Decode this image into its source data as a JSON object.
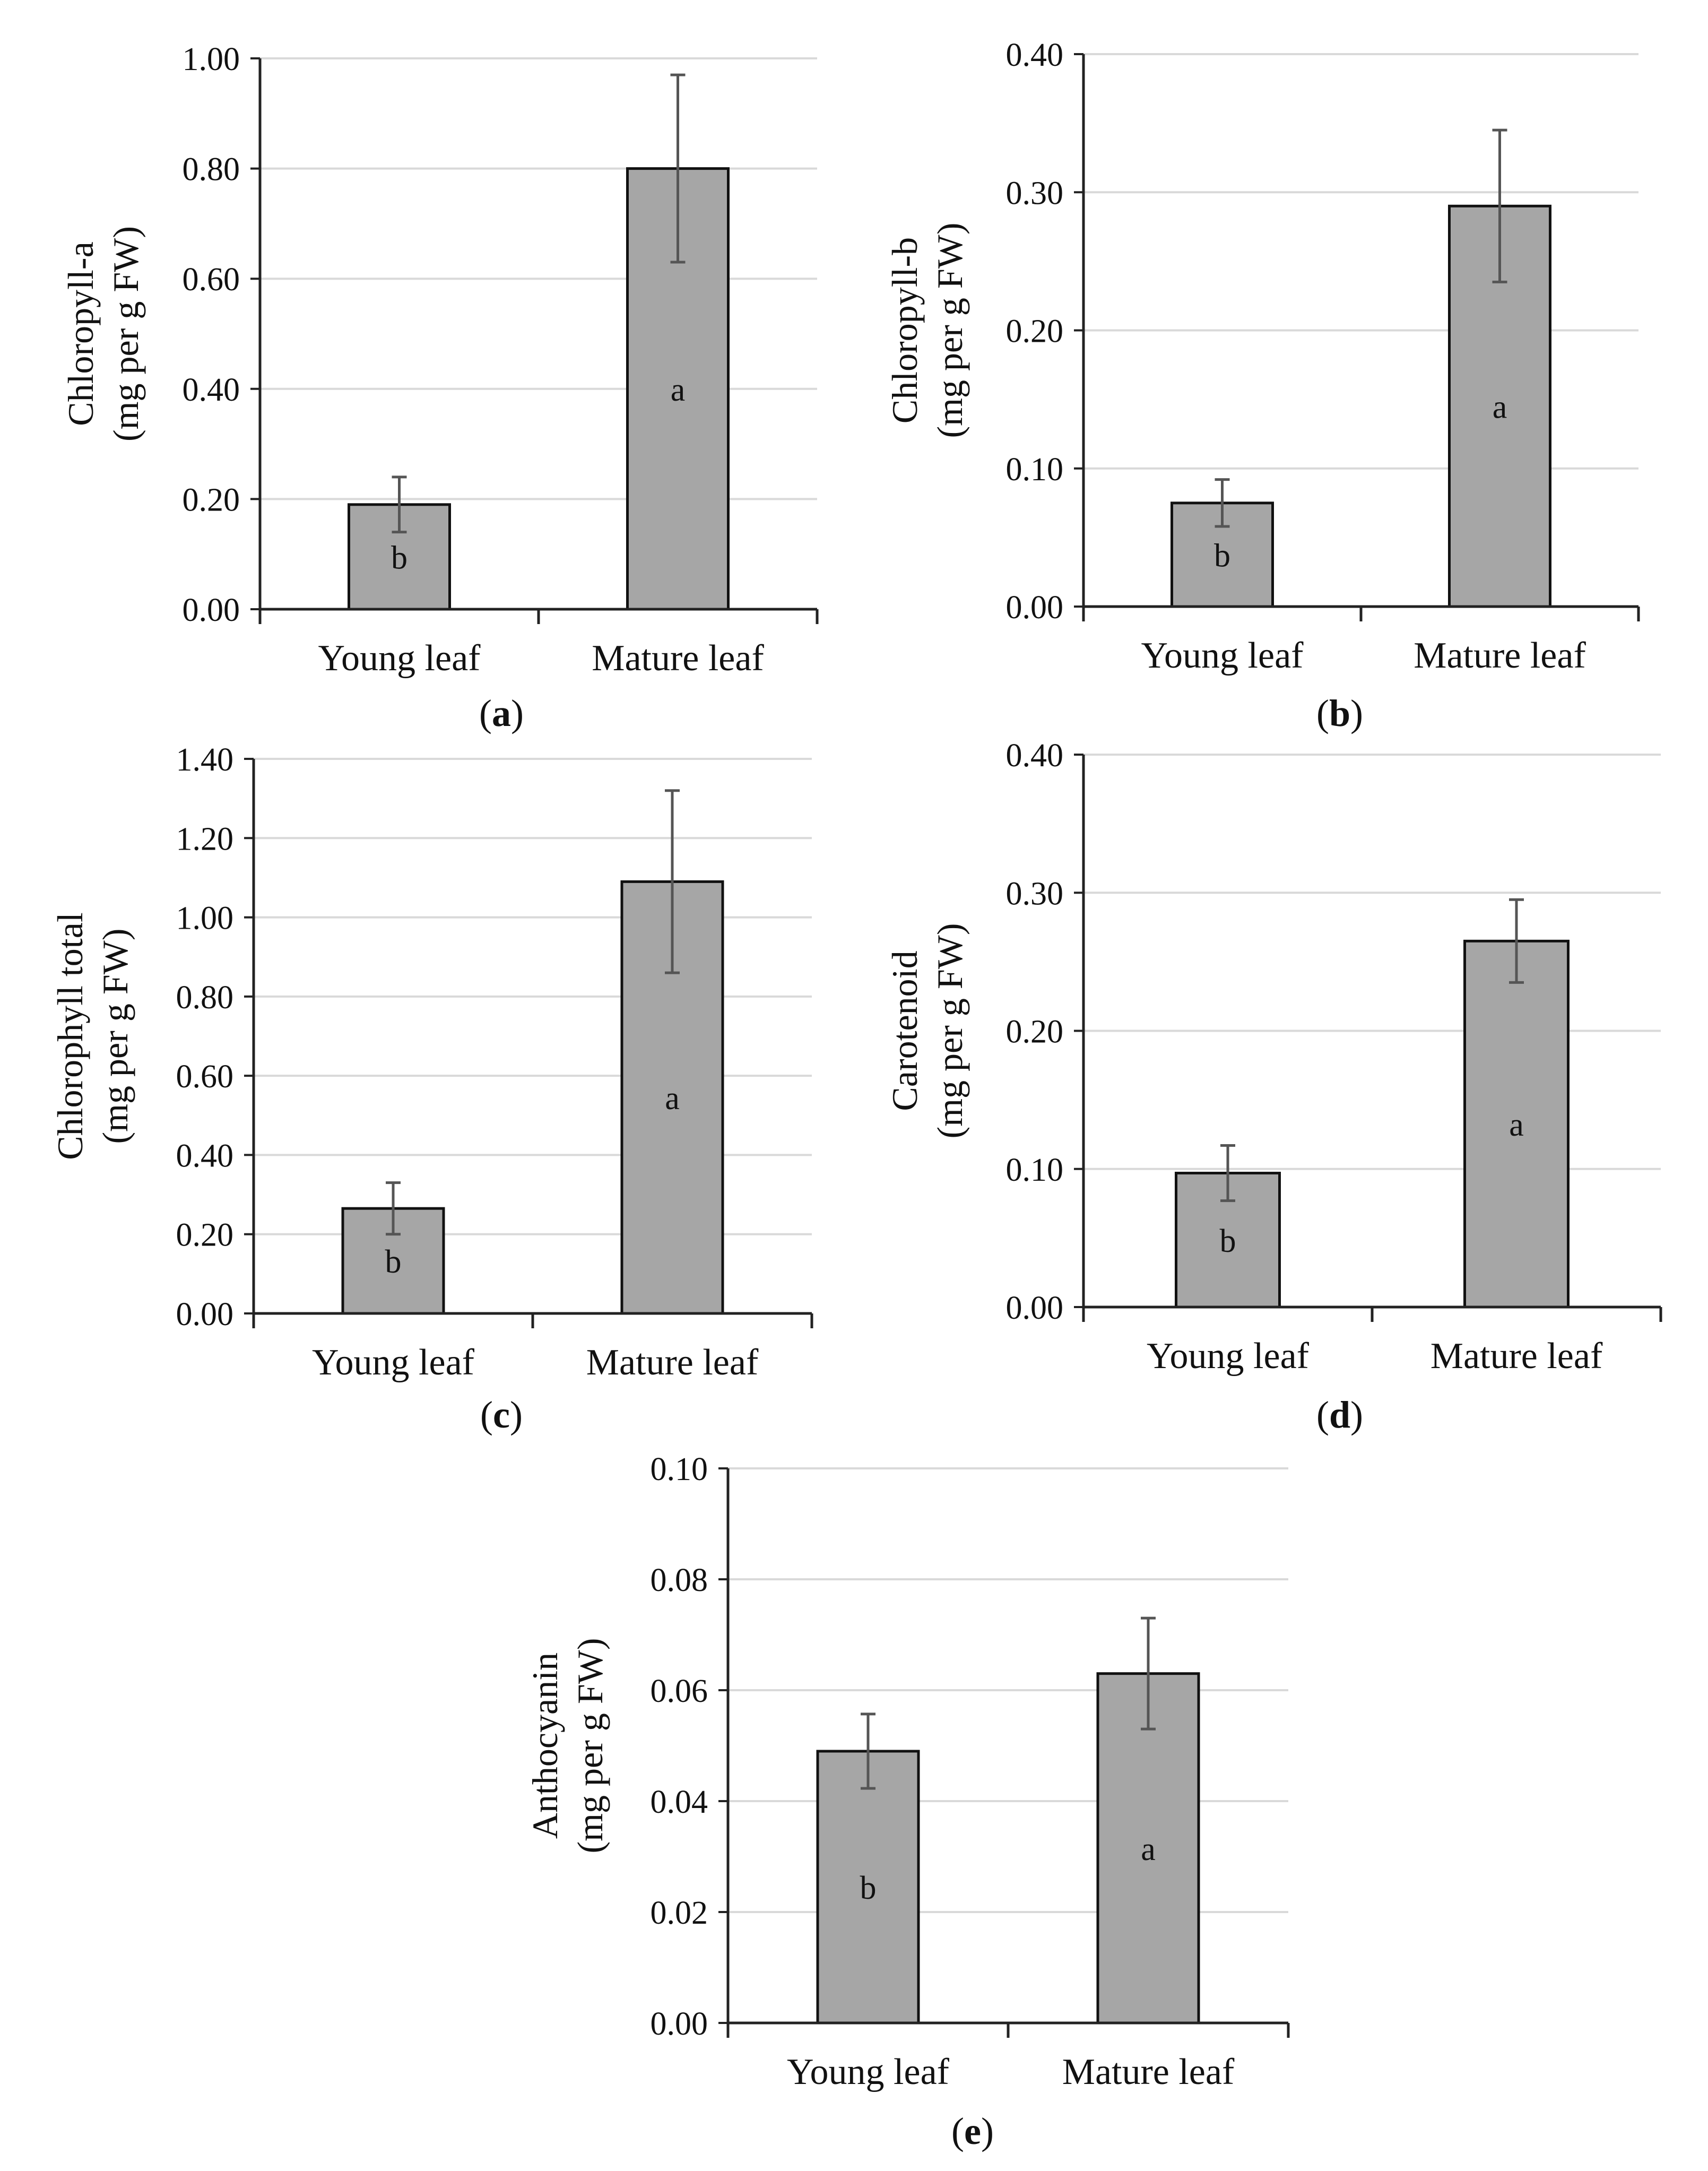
{
  "style": {
    "bar_fill": "#a6a6a6",
    "bar_stroke": "#111111",
    "grid_color": "#d9d9d9",
    "axis_color": "#222222",
    "error_color": "#555555"
  },
  "chart_data": [
    {
      "id": "a",
      "type": "bar",
      "panel_label": "a",
      "ylabel_line1": "Chloropyll-a",
      "ylabel_line2": "(mg per g FW)",
      "categories": [
        "Young leaf",
        "Mature leaf"
      ],
      "values": [
        0.19,
        0.8
      ],
      "errors": [
        0.05,
        0.17
      ],
      "letters": [
        "b",
        "a"
      ],
      "ylim": [
        0,
        1.0
      ],
      "ticks": [
        0,
        0.2,
        0.4,
        0.6,
        0.8,
        1.0
      ],
      "tick_labels": [
        "0.00",
        "0.20",
        "0.40",
        "0.60",
        "0.80",
        "1.00"
      ],
      "grid": true
    },
    {
      "id": "b",
      "type": "bar",
      "panel_label": "b",
      "ylabel_line1": "Chloropyll-b",
      "ylabel_line2": "(mg per g FW)",
      "categories": [
        "Young leaf",
        "Mature leaf"
      ],
      "values": [
        0.075,
        0.29
      ],
      "errors": [
        0.017,
        0.055
      ],
      "letters": [
        "b",
        "a"
      ],
      "ylim": [
        0,
        0.4
      ],
      "ticks": [
        0,
        0.1,
        0.2,
        0.3,
        0.4
      ],
      "tick_labels": [
        "0.00",
        "0.10",
        "0.20",
        "0.30",
        "0.40"
      ],
      "grid": true
    },
    {
      "id": "c",
      "type": "bar",
      "panel_label": "c",
      "ylabel_line1": "Chlorophyll total",
      "ylabel_line2": "(mg per g FW)",
      "categories": [
        "Young leaf",
        "Mature leaf"
      ],
      "values": [
        0.265,
        1.09
      ],
      "errors": [
        0.065,
        0.23
      ],
      "letters": [
        "b",
        "a"
      ],
      "ylim": [
        0,
        1.4
      ],
      "ticks": [
        0,
        0.2,
        0.4,
        0.6,
        0.8,
        1.0,
        1.2,
        1.4
      ],
      "tick_labels": [
        "0.00",
        "0.20",
        "0.40",
        "0.60",
        "0.80",
        "1.00",
        "1.20",
        "1.40"
      ],
      "grid": true
    },
    {
      "id": "d",
      "type": "bar",
      "panel_label": "d",
      "ylabel_line1": "Carotenoid",
      "ylabel_line2": "(mg per g FW)",
      "categories": [
        "Young leaf",
        "Mature leaf"
      ],
      "values": [
        0.097,
        0.265
      ],
      "errors": [
        0.02,
        0.03
      ],
      "letters": [
        "b",
        "a"
      ],
      "ylim": [
        0,
        0.4
      ],
      "ticks": [
        0,
        0.1,
        0.2,
        0.3,
        0.4
      ],
      "tick_labels": [
        "0.00",
        "0.10",
        "0.20",
        "0.30",
        "0.40"
      ],
      "grid": true
    },
    {
      "id": "e",
      "type": "bar",
      "panel_label": "e",
      "ylabel_line1": "Anthocyanin",
      "ylabel_line2": "(mg per g FW)",
      "categories": [
        "Young leaf",
        "Mature leaf"
      ],
      "values": [
        0.049,
        0.063
      ],
      "errors": [
        0.0067,
        0.01
      ],
      "letters": [
        "b",
        "a"
      ],
      "ylim": [
        0,
        0.1
      ],
      "ticks": [
        0,
        0.02,
        0.04,
        0.06,
        0.08,
        0.1
      ],
      "tick_labels": [
        "0.00",
        "0.02",
        "0.04",
        "0.06",
        "0.08",
        "0.10"
      ],
      "grid": true
    }
  ]
}
